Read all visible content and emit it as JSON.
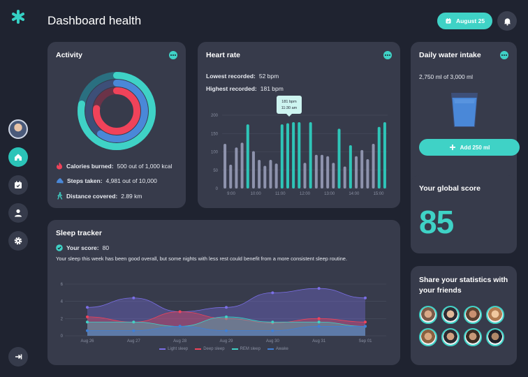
{
  "app": {
    "title": "Dashboard health"
  },
  "header": {
    "date_label": "August 25"
  },
  "sidebar": {
    "items": [
      {
        "name": "home"
      },
      {
        "name": "calendar"
      },
      {
        "name": "profile"
      },
      {
        "name": "settings"
      }
    ]
  },
  "activity": {
    "title": "Activity",
    "calories_label": "Calories burned:",
    "calories_value": "500 out of 1,000 kcal",
    "steps_label": "Steps taken:",
    "steps_value": "4,981 out of 10,000",
    "distance_label": "Distance covered:",
    "distance_value": "2.89 km"
  },
  "heart": {
    "title": "Heart rate",
    "lowest_label": "Lowest recorded:",
    "lowest_value": "52 bpm",
    "highest_label": "Highest recorded:",
    "highest_value": "181 bpm",
    "tooltip_bpm": "181 bpm",
    "tooltip_time": "11:30 am"
  },
  "water": {
    "title": "Daily water intake",
    "amount": "2,750 ml of 3,000 ml",
    "add_button": "Add 250 ml"
  },
  "score": {
    "title": "Your global score",
    "value": "85"
  },
  "share": {
    "title": "Share your statistics with your friends"
  },
  "sleep": {
    "title": "Sleep tracker",
    "score_label": "Your score:",
    "score_value": "80",
    "description": "Your sleep this week has been good overall, but some nights with less rest could benefit from a more consistent sleep routine."
  },
  "colors": {
    "accent": "#3fd2c6",
    "card": "#373b4b",
    "background": "#1f2330",
    "red": "#f0435a",
    "purple": "#7b6fe6"
  },
  "chart_data": [
    {
      "type": "bar",
      "title": "Heart rate",
      "ylim": [
        0,
        200
      ],
      "yticks": [
        0,
        50,
        100,
        150,
        200
      ],
      "xticks": [
        "9:00",
        "10:00",
        "11:00",
        "12:00",
        "13:00",
        "14:00",
        "15:00"
      ],
      "values": [
        122,
        65,
        112,
        125,
        175,
        102,
        78,
        62,
        78,
        68,
        175,
        178,
        181,
        181,
        70,
        181,
        92,
        92,
        88,
        70,
        163,
        60,
        118,
        88,
        105,
        80,
        122,
        168,
        181
      ],
      "highlight": [
        false,
        false,
        false,
        false,
        true,
        false,
        false,
        false,
        false,
        false,
        true,
        true,
        true,
        true,
        false,
        true,
        false,
        false,
        false,
        false,
        true,
        false,
        true,
        false,
        false,
        false,
        false,
        true,
        true
      ]
    },
    {
      "type": "area",
      "title": "Sleep tracker",
      "categories": [
        "Aug 26",
        "Aug 27",
        "Aug 28",
        "Aug 29",
        "Aug 30",
        "Aug 31",
        "Sep 01"
      ],
      "ylim": [
        0,
        6
      ],
      "yticks": [
        0,
        2,
        4,
        6
      ],
      "series": [
        {
          "name": "Light sleep",
          "color": "#7b6fe6",
          "values": [
            3.3,
            4.4,
            2.8,
            3.3,
            5.0,
            5.5,
            4.4
          ]
        },
        {
          "name": "Deep sleep",
          "color": "#f0435a",
          "values": [
            2.2,
            1.6,
            2.8,
            2.0,
            1.5,
            2.0,
            1.6
          ]
        },
        {
          "name": "REM sleep",
          "color": "#3fd2c6",
          "values": [
            1.6,
            1.6,
            1.1,
            2.2,
            1.6,
            1.6,
            1.1
          ]
        },
        {
          "name": "Awake",
          "color": "#3f7fd6",
          "values": [
            0.6,
            0.6,
            1.1,
            0.6,
            0.6,
            1.1,
            1.1
          ]
        }
      ]
    }
  ]
}
